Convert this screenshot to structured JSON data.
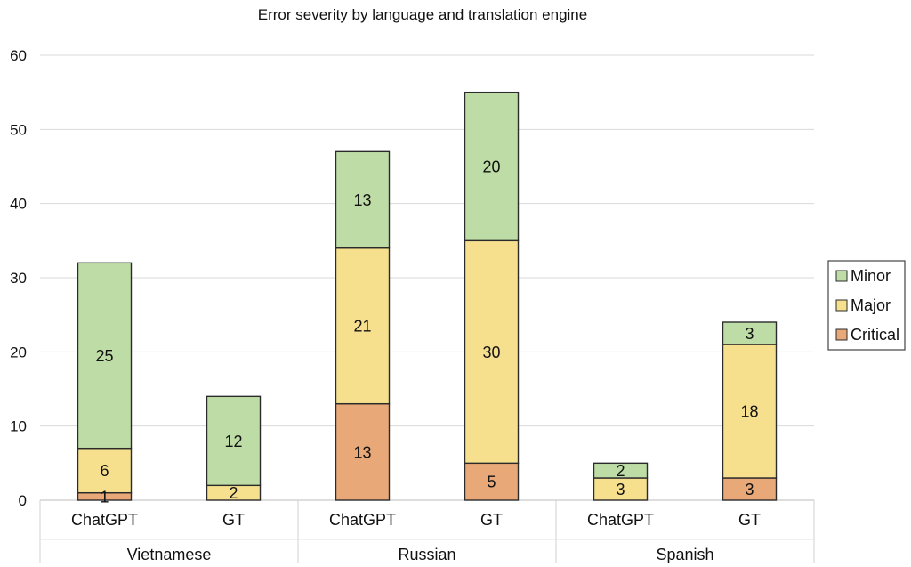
{
  "chart_data": {
    "type": "bar",
    "stacked": true,
    "title": "Error severity by language and translation engine",
    "groups": [
      "Vietnamese",
      "Russian",
      "Spanish"
    ],
    "categories": [
      "ChatGPT",
      "GT",
      "ChatGPT",
      "GT",
      "ChatGPT",
      "GT"
    ],
    "series": [
      {
        "name": "Critical",
        "values": [
          1,
          0,
          13,
          5,
          0,
          3
        ],
        "labels": [
          "1",
          "",
          "13",
          "5",
          "",
          "3"
        ],
        "color": "#E8A878"
      },
      {
        "name": "Major",
        "values": [
          6,
          2,
          21,
          30,
          3,
          18
        ],
        "labels": [
          "6",
          "2",
          "21",
          "30",
          "3",
          "18"
        ],
        "color": "#F6E08E"
      },
      {
        "name": "Minor",
        "values": [
          25,
          12,
          13,
          20,
          2,
          3
        ],
        "labels": [
          "25",
          "12",
          "13",
          "20",
          "2",
          "3"
        ],
        "color": "#BEDDA6"
      }
    ],
    "ylim": [
      0,
      60
    ],
    "yticks": [
      0,
      10,
      20,
      30,
      40,
      50,
      60
    ],
    "grid": true,
    "legend": "right",
    "legend_order": [
      "Minor",
      "Major",
      "Critical"
    ]
  }
}
